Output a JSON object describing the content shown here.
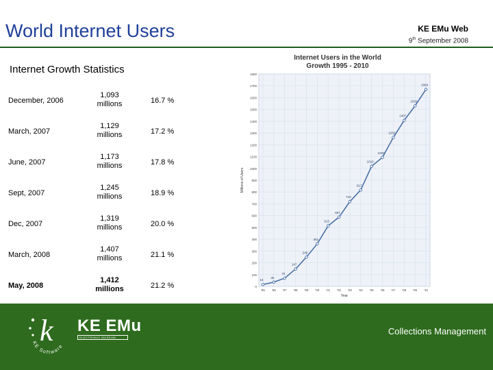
{
  "header": {
    "title": "World Internet Users",
    "org": "KE EMu Web",
    "date_day": "9",
    "date_suffix": "th",
    "date_rest": " September 2008",
    "subtitle": "Internet Growth Statistics"
  },
  "stats": [
    {
      "period": "December, 2006",
      "users_num": "1,093",
      "users_unit": "millions",
      "pct": "16.7 %"
    },
    {
      "period": "March, 2007",
      "users_num": "1,129",
      "users_unit": "millions",
      "pct": "17.2 %"
    },
    {
      "period": "June, 2007",
      "users_num": "1,173",
      "users_unit": "millions",
      "pct": "17.8 %"
    },
    {
      "period": "Sept, 2007",
      "users_num": "1,245",
      "users_unit": "millions",
      "pct": "18.9 %"
    },
    {
      "period": "Dec, 2007",
      "users_num": "1,319",
      "users_unit": "millions",
      "pct": "20.0 %"
    },
    {
      "period": "March, 2008",
      "users_num": "1,407",
      "users_unit": "millions",
      "pct": "21.1 %"
    },
    {
      "period": "May, 2008",
      "users_num": "1,412",
      "users_unit": "millions",
      "pct": "21.2 %"
    }
  ],
  "chart_data": {
    "type": "line",
    "title_line1": "Internet Users in the World",
    "title_line2": "Growth 1995 - 2010",
    "xlabel": "Year",
    "ylabel": "Millions of Users",
    "ylim": [
      0,
      1800
    ],
    "yticks": [
      "0",
      "100",
      "200",
      "300",
      "400",
      "500",
      "600",
      "700",
      "800",
      "900",
      "1000",
      "1100",
      "1200",
      "1300",
      "1400",
      "1500",
      "1600",
      "1700",
      "1800"
    ],
    "categories": [
      "'95",
      "'96",
      "'97",
      "'98",
      "'99",
      "'00",
      "'01",
      "'02",
      "'03",
      "'04",
      "'05",
      "'06",
      "'07",
      "'08",
      "'09",
      "'10"
    ],
    "values": [
      16,
      36,
      70,
      147,
      248,
      361,
      513,
      587,
      719,
      817,
      1018,
      1093,
      1262,
      1407,
      1530,
      1669
    ],
    "point_labels": [
      "16",
      "36",
      "70",
      "147",
      "248",
      "361",
      "513",
      "587",
      "719",
      "817",
      "1018",
      "1093",
      "1262",
      "1407",
      "1530",
      "1669"
    ],
    "grid": true,
    "color": "#4a6fa5"
  },
  "footer": {
    "brand": "KE EMu",
    "brand_sub": "ELECTRONIC MUSEUM",
    "logo_letter": "k",
    "logo_ring": "KE Software",
    "note": "Collections Management"
  }
}
